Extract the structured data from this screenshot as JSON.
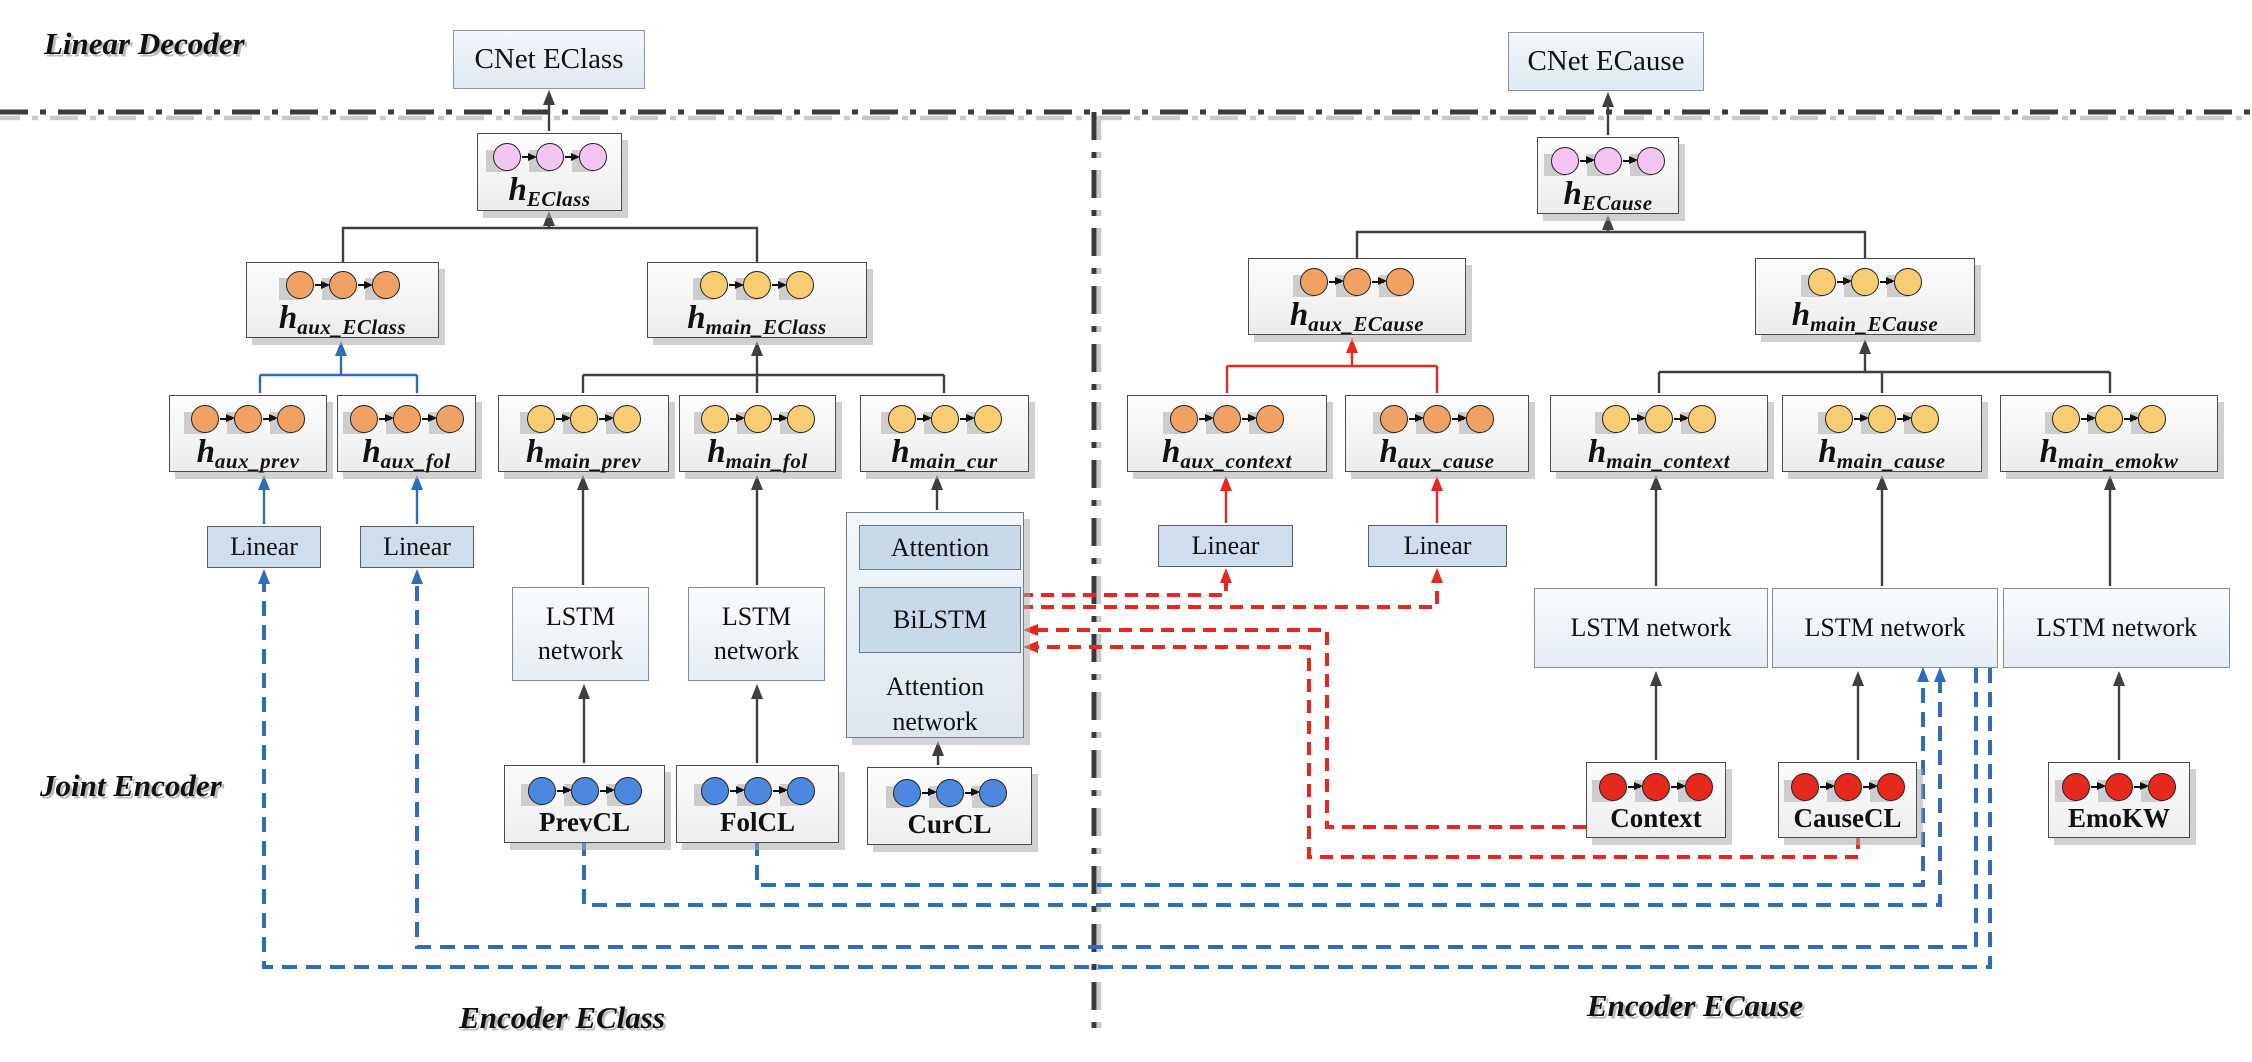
{
  "labels": {
    "decoder": "Linear Decoder",
    "joint_encoder": "Joint Encoder",
    "encoder_eclass": "Encoder EClass",
    "encoder_ecause": "Encoder ECause"
  },
  "decoder": {
    "cnet_eclass": "CNet EClass",
    "cnet_ecause": "CNet ECause"
  },
  "hidden": {
    "h_eclass": {
      "base": "h",
      "sub": "EClass"
    },
    "h_ecause": {
      "base": "h",
      "sub": "ECause"
    },
    "haux_eclass": {
      "base": "h",
      "sub": "aux_EClass"
    },
    "hmain_eclass": {
      "base": "h",
      "sub": "main_EClass"
    },
    "haux_prev": {
      "base": "h",
      "sub": "aux_prev"
    },
    "haux_fol": {
      "base": "h",
      "sub": "aux_fol"
    },
    "hmain_prev": {
      "base": "h",
      "sub": "main_prev"
    },
    "hmain_fol": {
      "base": "h",
      "sub": "main_fol"
    },
    "hmain_cur": {
      "base": "h",
      "sub": "main_cur"
    },
    "haux_ecause": {
      "base": "h",
      "sub": "aux_ECause"
    },
    "hmain_ecause": {
      "base": "h",
      "sub": "main_ECause"
    },
    "haux_context": {
      "base": "h",
      "sub": "aux_context"
    },
    "haux_cause": {
      "base": "h",
      "sub": "aux_cause"
    },
    "hmain_context": {
      "base": "h",
      "sub": "main_context"
    },
    "hmain_cause": {
      "base": "h",
      "sub": "main_cause"
    },
    "hmain_emokw": {
      "base": "h",
      "sub": "main_emokw"
    }
  },
  "ops": {
    "linear": "Linear",
    "lstm_line1": "LSTM",
    "lstm_line2": "network",
    "lstm_single": "LSTM network",
    "attention": "Attention",
    "bilstm": "BiLSTM",
    "attention_network_line1": "Attention",
    "attention_network_line2": "network"
  },
  "inputs": {
    "prevcl": "PrevCL",
    "folcl": "FolCL",
    "curcl": "CurCL",
    "context": "Context",
    "causecl": "CauseCL",
    "emokw": "EmoKW"
  },
  "colors": {
    "pink": "#f3c6f2",
    "orange": "#f0a264",
    "yellow": "#f6cd73",
    "blue": "#4d87e0",
    "red": "#e6281e",
    "blue_link": "#2f6cbe",
    "red_link": "#e8281e",
    "dark_link": "#3f3f3f"
  }
}
